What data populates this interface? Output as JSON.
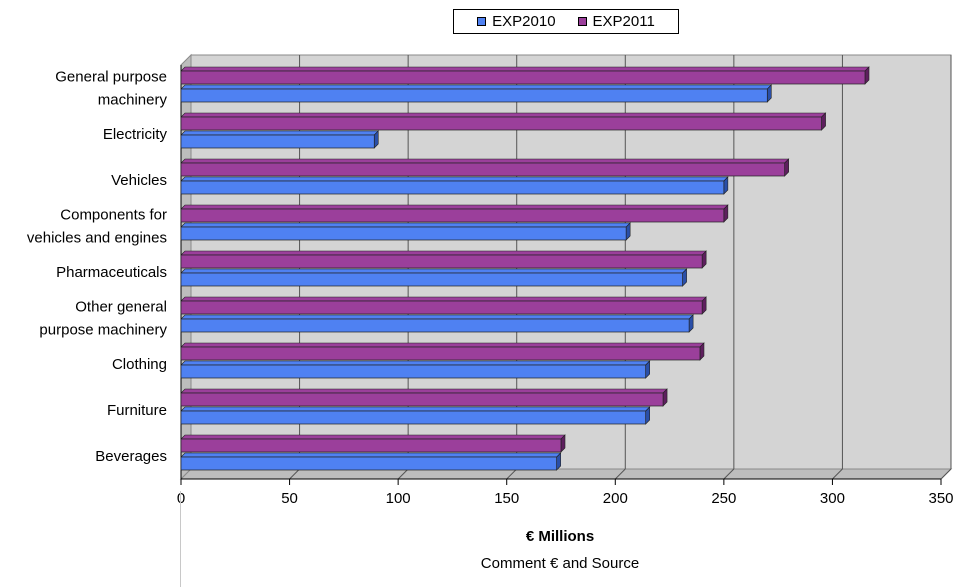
{
  "chart_data": {
    "type": "bar",
    "orientation": "horizontal",
    "categories": [
      "General purpose machinery",
      "Electricity",
      "Vehicles",
      "Components for vehicles and engines",
      "Pharmaceuticals",
      "Other general purpose machinery",
      "Clothing",
      "Furniture",
      "Beverages"
    ],
    "category_lines": [
      [
        "General purpose",
        "machinery"
      ],
      [
        "Electricity"
      ],
      [
        "Vehicles"
      ],
      [
        "Components for",
        "vehicles and engines"
      ],
      [
        "Pharmaceuticals"
      ],
      [
        "Other general",
        "purpose machinery"
      ],
      [
        "Clothing"
      ],
      [
        "Furniture"
      ],
      [
        "Beverages"
      ]
    ],
    "series": [
      {
        "name": "EXP2010",
        "values": [
          270,
          89,
          250,
          205,
          231,
          234,
          214,
          214,
          173
        ],
        "color": "#4f81f2"
      },
      {
        "name": "EXP2011",
        "values": [
          315,
          295,
          278,
          250,
          240,
          240,
          239,
          222,
          175
        ],
        "color": "#9b3f9b"
      }
    ],
    "x_ticks": [
      "0",
      "50",
      "100",
      "150",
      "200",
      "250",
      "300",
      "350"
    ],
    "xlim": [
      0,
      350
    ],
    "xlabel": "€ Millions",
    "comment": "Comment € and Source",
    "legend_position": "top",
    "grid": true
  }
}
